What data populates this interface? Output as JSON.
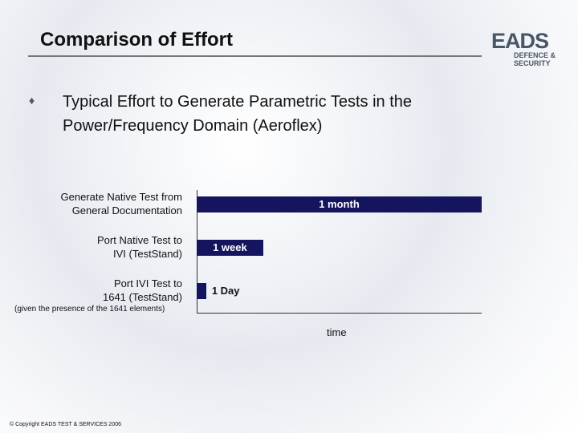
{
  "slide": {
    "title": "Comparison of Effort",
    "bullet": "Typical Effort to Generate Parametric Tests in the Power/Frequency Domain (Aeroflex)",
    "logo": "EADS",
    "logo_sub": "DEFENCE & SECURITY",
    "footer": "© Copyright EADS TEST & SERVICES 2006"
  },
  "chart_data": {
    "type": "barh",
    "categories": [
      "Generate Native Test from\nGeneral Documentation",
      "Port Native Test to\nIVI (TestStand)",
      "Port IVI Test to\n1641 (TestStand)"
    ],
    "values": [
      30,
      7,
      1
    ],
    "value_labels": [
      "1 month",
      "1 week",
      "1 Day"
    ],
    "note": "(given the presence of the 1641 elements)",
    "xlabel": "time",
    "color": "#14145f"
  }
}
